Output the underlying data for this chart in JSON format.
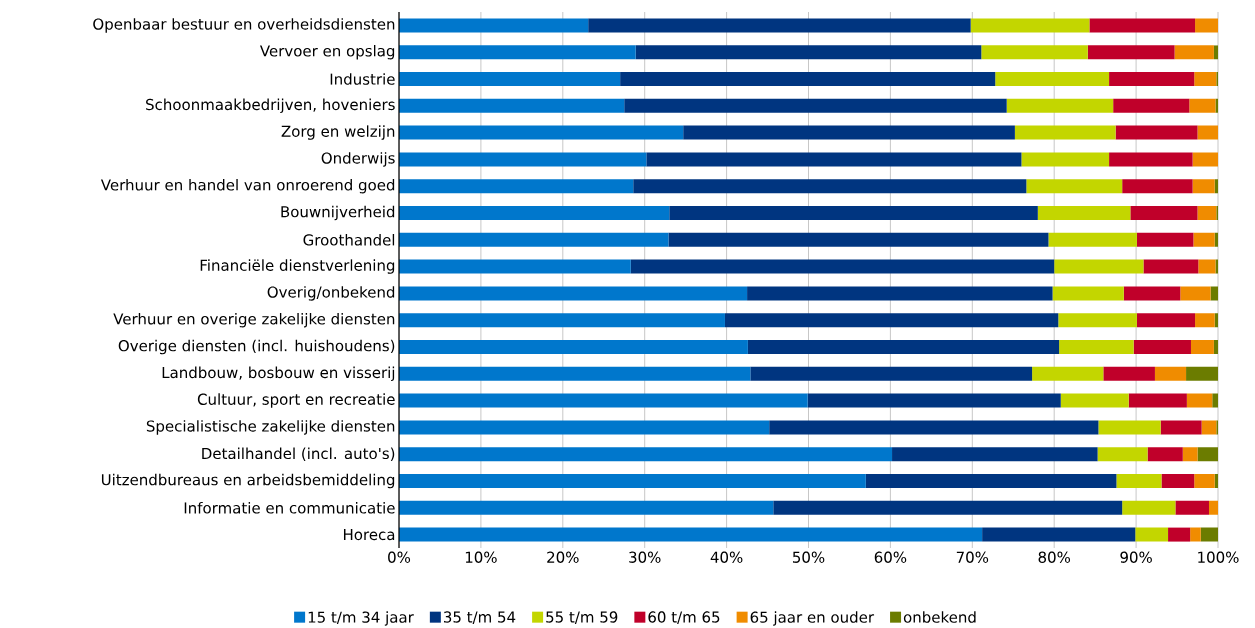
{
  "chart_data": {
    "type": "bar",
    "orientation": "horizontal",
    "stacked": true,
    "categories": [
      "Openbaar bestuur en overheidsdiensten",
      "Vervoer en opslag",
      "Industrie",
      "Schoonmaakbedrijven, hoveniers",
      "Zorg en welzijn",
      "Onderwijs",
      "Verhuur en handel van onroerend goed",
      "Bouwnijverheid",
      "Groothandel",
      "Financiële dienstverlening",
      "Overig/onbekend",
      "Verhuur en overige zakelijke diensten",
      "Overige diensten (incl. huishoudens)",
      "Landbouw, bosbouw en visserij",
      "Cultuur, sport en recreatie",
      "Specialistische zakelijke diensten",
      "Detailhandel (incl. auto's)",
      "Uitzendbureaus en arbeidsbemiddeling",
      "Informatie en communicatie",
      "Horeca"
    ],
    "series": [
      {
        "name": "15 t/m 34 jaar",
        "color": "#0077cc",
        "values": [
          23.1,
          28.9,
          27.0,
          27.5,
          34.7,
          30.2,
          28.6,
          33.0,
          32.9,
          28.3,
          42.5,
          39.8,
          42.6,
          42.9,
          49.9,
          45.2,
          60.2,
          57.0,
          45.7,
          71.2
        ]
      },
      {
        "name": "35 t/m 54",
        "color": "#003580",
        "values": [
          46.7,
          42.2,
          45.8,
          46.7,
          40.5,
          45.8,
          48.0,
          45.0,
          46.4,
          51.7,
          37.3,
          40.7,
          38.0,
          34.4,
          30.9,
          40.2,
          25.1,
          30.6,
          42.6,
          18.7
        ]
      },
      {
        "name": "55 t/m 59",
        "color": "#c3d600",
        "values": [
          14.5,
          13.0,
          13.9,
          13.0,
          12.3,
          10.7,
          11.7,
          11.3,
          10.8,
          10.9,
          8.7,
          9.6,
          9.1,
          8.7,
          8.3,
          7.6,
          6.1,
          5.5,
          6.5,
          4.0
        ]
      },
      {
        "name": "60 t/m 65",
        "color": "#c0002a",
        "values": [
          12.9,
          10.6,
          10.4,
          9.3,
          10.0,
          10.2,
          8.6,
          8.2,
          6.9,
          6.7,
          6.9,
          7.1,
          7.0,
          6.3,
          7.1,
          5.0,
          4.3,
          4.0,
          4.1,
          2.7
        ]
      },
      {
        "name": "65 jaar en ouder",
        "color": "#f08c00",
        "values": [
          2.8,
          4.8,
          2.7,
          3.2,
          2.5,
          3.1,
          2.7,
          2.3,
          2.6,
          2.1,
          3.7,
          2.4,
          2.8,
          3.8,
          3.1,
          1.8,
          1.8,
          2.5,
          1.1,
          1.3
        ]
      },
      {
        "name": "onbekend",
        "color": "#6b7c00",
        "values": [
          0,
          0.5,
          0.2,
          0.3,
          0,
          0,
          0.4,
          0.2,
          0.4,
          0.3,
          0.9,
          0.4,
          0.5,
          3.9,
          0.7,
          0.2,
          2.5,
          0.4,
          0,
          2.1
        ]
      }
    ],
    "xlim": [
      0,
      100
    ],
    "xticks": [
      {
        "value": 0,
        "label": "0%"
      },
      {
        "value": 10,
        "label": "10%"
      },
      {
        "value": 20,
        "label": "20%"
      },
      {
        "value": 30,
        "label": "30%"
      },
      {
        "value": 40,
        "label": "40%"
      },
      {
        "value": 50,
        "label": "50%"
      },
      {
        "value": 60,
        "label": "60%"
      },
      {
        "value": 70,
        "label": "70%"
      },
      {
        "value": 80,
        "label": "80%"
      },
      {
        "value": 90,
        "label": "90%"
      },
      {
        "value": 100,
        "label": "100%"
      }
    ],
    "grid": "x",
    "legend": "bottom"
  }
}
